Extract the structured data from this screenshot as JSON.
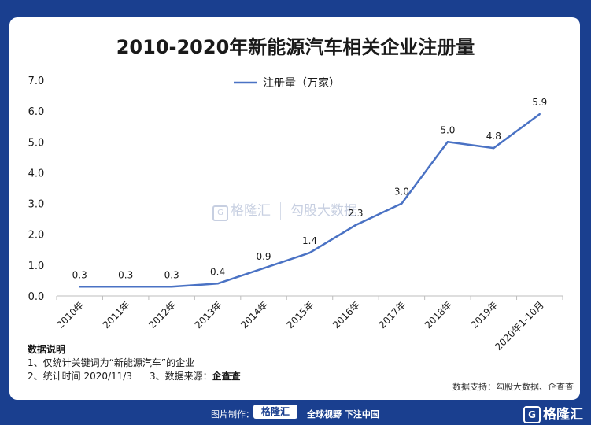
{
  "chart_data": {
    "type": "line",
    "title": "2010-2020年新能源汽车相关企业注册量",
    "categories": [
      "2010年",
      "2011年",
      "2012年",
      "2013年",
      "2014年",
      "2015年",
      "2016年",
      "2017年",
      "2018年",
      "2019年",
      "2020年1-10月"
    ],
    "series": [
      {
        "name": "注册量（万家）",
        "values": [
          0.3,
          0.3,
          0.3,
          0.4,
          0.9,
          1.4,
          2.3,
          3.0,
          5.0,
          4.8,
          5.9
        ]
      }
    ],
    "y_ticks": [
      "0.0",
      "1.0",
      "2.0",
      "3.0",
      "4.0",
      "5.0",
      "6.0",
      "7.0"
    ],
    "ylim": [
      0,
      7
    ],
    "legend_position": "top-center",
    "line_color": "#4a72c4"
  },
  "notes": {
    "heading": "数据说明",
    "line1": "1、仅统计关键词为“新能源汽车”的企业",
    "line2a": "2、统计时间  2020/11/3",
    "line2b": "3、数据来源：",
    "line2c": "企查查"
  },
  "support": "数据支持：勾股大数据、企查查",
  "footer": {
    "made_label": "图片制作：",
    "brand": "格隆汇",
    "slogan": "全球视野 下注中国",
    "logo_text": "格隆汇",
    "logo_mark": "G"
  },
  "watermark": {
    "mark": "G",
    "name1": "格隆汇",
    "name2": "勾股大数据"
  }
}
